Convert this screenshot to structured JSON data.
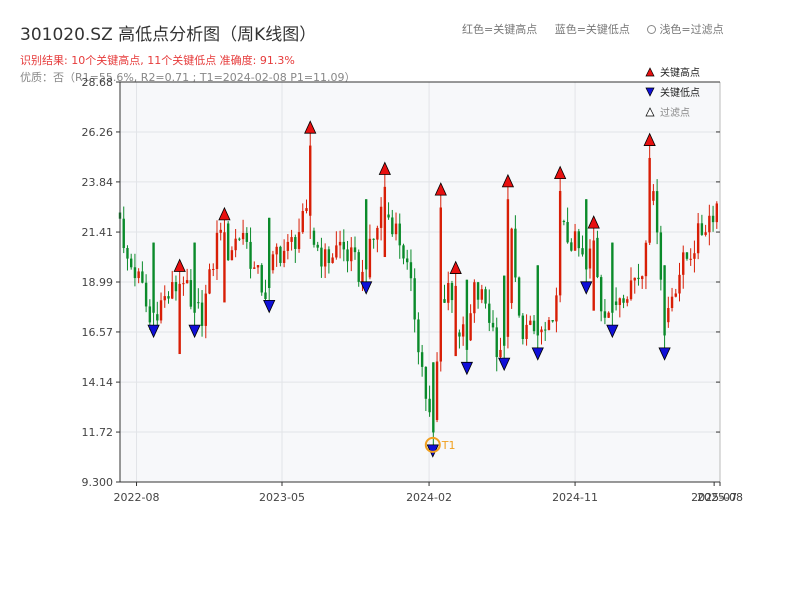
{
  "title": "301020.SZ 高低点分析图（周K线图）",
  "result_text": "识别结果: 10个关键高点, 11个关键低点  准确度: 91.3%",
  "quality_text": "优质：否（R1=55.6%, R2=0.71 ; T1=2024-02-08 P1=11.09）",
  "top_legend": {
    "red": "红色=关键高点",
    "blue": "蓝色=关键低点",
    "faded": "浅色=过滤点"
  },
  "colors": {
    "up": "#d81e06",
    "down": "#0a8a2a",
    "high_marker": "#e81010",
    "low_marker": "#1010d8",
    "t1_ring": "#f0a020",
    "plot_bg": "#f7f8fa",
    "grid": "#e2e4e8"
  },
  "chart_data": {
    "type": "candlestick",
    "x_start": "2022-07-01",
    "x_end": "2025-07-31",
    "ylim": [
      9.3,
      28.68
    ],
    "yticks": [
      "28.68",
      "26.26",
      "23.84",
      "21.41",
      "18.99",
      "16.57",
      "14.14",
      "11.72",
      "9.300"
    ],
    "ytick_values": [
      28.68,
      26.26,
      23.84,
      21.41,
      18.99,
      16.57,
      14.14,
      11.72,
      9.3
    ],
    "xticks": [
      {
        "label": "2022-08",
        "date": "2022-08-01"
      },
      {
        "label": "2023-05",
        "date": "2023-05-01"
      },
      {
        "label": "2024-02",
        "date": "2024-02-01"
      },
      {
        "label": "2024-11",
        "date": "2024-11-01"
      },
      {
        "label": "2025-07",
        "date": "2025-07-20"
      },
      {
        "label": "2025-08",
        "date": "2025-07-31"
      }
    ],
    "legend": {
      "position": "top-right",
      "entries": [
        {
          "label": "关键高点",
          "type": "high"
        },
        {
          "label": "关键低点",
          "type": "low"
        },
        {
          "label": "过滤点",
          "type": "faded"
        }
      ]
    },
    "anchors": [
      [
        "2022-07-01",
        22.5
      ],
      [
        "2022-07-08",
        20.3
      ],
      [
        "2022-07-29",
        19.5
      ],
      [
        "2022-08-12",
        18.6
      ],
      [
        "2022-08-26",
        17.0
      ],
      [
        "2022-09-09",
        17.8
      ],
      [
        "2022-10-07",
        18.5
      ],
      [
        "2022-10-28",
        19.3
      ],
      [
        "2022-11-11",
        17.5
      ],
      [
        "2022-12-02",
        17.5
      ],
      [
        "2022-12-16",
        19.0
      ],
      [
        "2023-01-06",
        22.0
      ],
      [
        "2023-01-20",
        20.5
      ],
      [
        "2023-02-17",
        21.5
      ],
      [
        "2023-03-10",
        19.5
      ],
      [
        "2023-03-31",
        18.5
      ],
      [
        "2023-04-21",
        20.5
      ],
      [
        "2023-05-12",
        20.5
      ],
      [
        "2023-06-02",
        21.5
      ],
      [
        "2023-06-16",
        22.0
      ],
      [
        "2023-06-30",
        21.0
      ],
      [
        "2023-07-21",
        20.0
      ],
      [
        "2023-08-18",
        20.8
      ],
      [
        "2023-09-15",
        19.8
      ],
      [
        "2023-09-29",
        19.2
      ],
      [
        "2023-10-20",
        21.0
      ],
      [
        "2023-11-03",
        22.5
      ],
      [
        "2023-11-24",
        22.0
      ],
      [
        "2023-12-15",
        20.5
      ],
      [
        "2024-01-05",
        17.5
      ],
      [
        "2024-01-26",
        13.5
      ],
      [
        "2024-02-08",
        11.5
      ],
      [
        "2024-02-23",
        18.0
      ],
      [
        "2024-03-08",
        19.0
      ],
      [
        "2024-03-22",
        17.0
      ],
      [
        "2024-04-12",
        16.0
      ],
      [
        "2024-04-26",
        18.5
      ],
      [
        "2024-05-17",
        18.0
      ],
      [
        "2024-06-07",
        16.0
      ],
      [
        "2024-06-21",
        15.8
      ],
      [
        "2024-07-05",
        21.0
      ],
      [
        "2024-07-19",
        17.0
      ],
      [
        "2024-08-09",
        16.5
      ],
      [
        "2024-08-30",
        16.5
      ],
      [
        "2024-09-20",
        16.5
      ],
      [
        "2024-10-04",
        21.5
      ],
      [
        "2024-10-25",
        21.0
      ],
      [
        "2024-11-08",
        20.5
      ],
      [
        "2024-11-22",
        19.5
      ],
      [
        "2024-12-06",
        21.0
      ],
      [
        "2024-12-20",
        18.0
      ],
      [
        "2025-01-10",
        17.5
      ],
      [
        "2025-01-24",
        18.5
      ],
      [
        "2025-02-14",
        19.0
      ],
      [
        "2025-03-07",
        19.5
      ],
      [
        "2025-03-21",
        23.5
      ],
      [
        "2025-04-04",
        22.0
      ],
      [
        "2025-04-18",
        17.0
      ],
      [
        "2025-05-02",
        18.5
      ],
      [
        "2025-05-16",
        19.5
      ],
      [
        "2025-06-06",
        20.5
      ],
      [
        "2025-06-27",
        21.5
      ],
      [
        "2025-07-18",
        22.5
      ],
      [
        "2025-07-31",
        23.0
      ]
    ],
    "key_highs": [
      {
        "date": "2022-10-21",
        "value": 19.5
      },
      {
        "date": "2023-01-13",
        "value": 22.0
      },
      {
        "date": "2023-06-23",
        "value": 26.2
      },
      {
        "date": "2023-11-10",
        "value": 24.2
      },
      {
        "date": "2024-02-23",
        "value": 23.2
      },
      {
        "date": "2024-03-22",
        "value": 19.4
      },
      {
        "date": "2024-06-28",
        "value": 23.6
      },
      {
        "date": "2024-10-04",
        "value": 24.0
      },
      {
        "date": "2024-12-06",
        "value": 21.6
      },
      {
        "date": "2025-03-21",
        "value": 25.6
      }
    ],
    "key_lows": [
      {
        "date": "2022-09-02",
        "value": 16.9
      },
      {
        "date": "2022-11-18",
        "value": 16.9
      },
      {
        "date": "2023-04-07",
        "value": 18.1
      },
      {
        "date": "2023-10-06",
        "value": 19.0
      },
      {
        "date": "2024-02-08",
        "value": 11.1
      },
      {
        "date": "2024-04-12",
        "value": 15.1
      },
      {
        "date": "2024-06-21",
        "value": 15.3
      },
      {
        "date": "2024-08-23",
        "value": 15.8
      },
      {
        "date": "2024-11-22",
        "value": 19.0
      },
      {
        "date": "2025-01-10",
        "value": 16.9
      },
      {
        "date": "2025-04-18",
        "value": 15.8
      }
    ],
    "t1": {
      "label": "T1",
      "date": "2024-02-08",
      "value": 11.1
    }
  }
}
